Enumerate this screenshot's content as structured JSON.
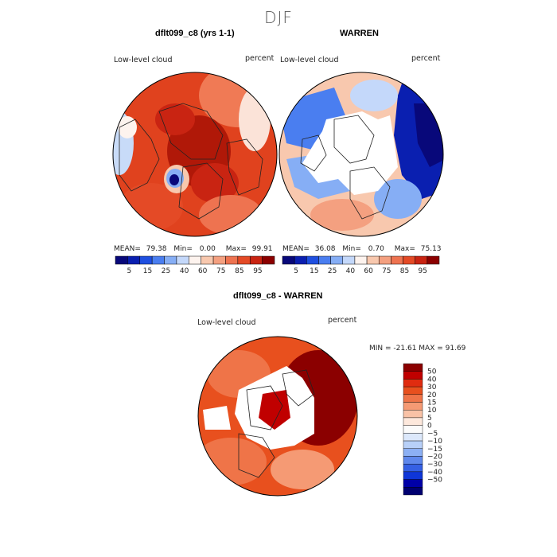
{
  "title": "DJF",
  "colors": {
    "abs_scale": [
      "#08087a",
      "#0a1fb0",
      "#1f4fe0",
      "#4a7ef0",
      "#86aef5",
      "#c4d8fa",
      "#fdf3ee",
      "#f8c8ae",
      "#f4a080",
      "#ee7350",
      "#e44a26",
      "#c92412",
      "#8b0000"
    ],
    "diff_scale": [
      "#8b0000",
      "#c00000",
      "#e02c10",
      "#e8501e",
      "#ef7448",
      "#f59a74",
      "#f9c2a6",
      "#fde8dc",
      "#fbfbfb",
      "#dce8fb",
      "#b8d0f8",
      "#8cb0f4",
      "#5f88ec",
      "#3560e4",
      "#0f36d8",
      "#0000a8",
      "#000070"
    ]
  },
  "panels": [
    {
      "title": "dflt099_c8 (yrs 1-1)",
      "variable": "Low-level cloud",
      "units": "percent",
      "stats": {
        "mean_label": "MEAN=",
        "mean": "79.38",
        "min_label": "Min=",
        "min": "0.00",
        "max_label": "Max=",
        "max": "99.91"
      },
      "colorbar_labels": [
        "5",
        "15",
        "25",
        "40",
        "60",
        "75",
        "85",
        "95"
      ]
    },
    {
      "title": "WARREN",
      "variable": "Low-level cloud",
      "units": "percent",
      "stats": {
        "mean_label": "MEAN=",
        "mean": "36.08",
        "min_label": "Min=",
        "min": "0.70",
        "max_label": "Max=",
        "max": "75.13"
      },
      "colorbar_labels": [
        "5",
        "15",
        "25",
        "40",
        "60",
        "75",
        "85",
        "95"
      ]
    }
  ],
  "difference": {
    "title": "dflt099_c8 - WARREN",
    "variable": "Low-level cloud",
    "units": "percent",
    "range_text": "MIN = -21.61 MAX =  91.69",
    "colorbar_labels": [
      "50",
      "40",
      "30",
      "20",
      "15",
      "10",
      "5",
      "0",
      "−5",
      "−10",
      "−15",
      "−20",
      "−30",
      "−40",
      "−50"
    ]
  }
}
